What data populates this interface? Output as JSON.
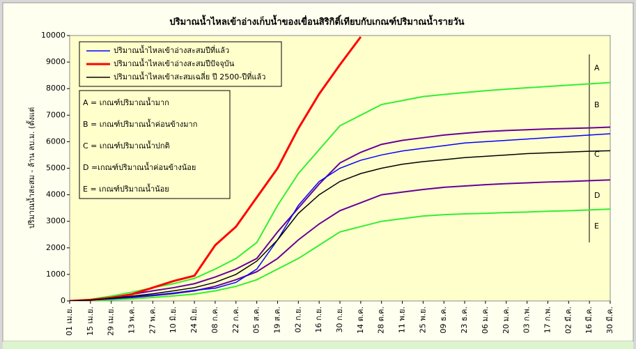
{
  "chart_data": {
    "type": "line",
    "title": "ปริมาณน้ำไหลเข้าอ่างเก็บน้ำของเขื่อนสิริกิติ์เทียบกับเกณฑ์ปริมาณน้ำรายวัน",
    "y_label": "ปริมาณน้ำสะสม - ล้าน ลบ.ม. (ตั้งแต่",
    "categories": [
      "01 เม.ย.",
      "15 เม.ย.",
      "29 เม.ย.",
      "13 พ.ค.",
      "27 พ.ค.",
      "10 มิ.ย.",
      "24 มิ.ย.",
      "08 ก.ค.",
      "22 ก.ค.",
      "05 ส.ค.",
      "19 ส.ค.",
      "02 ก.ย.",
      "16 ก.ย.",
      "30 ก.ย.",
      "14 ต.ค.",
      "28 ต.ค.",
      "11 พ.ย.",
      "25 พ.ย.",
      "09 ธ.ค.",
      "23 ธ.ค.",
      "06 ม.ค.",
      "20 ม.ค.",
      "03 ก.พ.",
      "17 ก.พ.",
      "02 มี.ค.",
      "16 มี.ค.",
      "30 มี.ค."
    ],
    "ylim": [
      0,
      10000
    ],
    "yticks": [
      0,
      1000,
      2000,
      3000,
      4000,
      5000,
      6000,
      7000,
      8000,
      9000,
      10000
    ],
    "series": [
      {
        "color": "#33ee33",
        "width": 2,
        "values": [
          0,
          60,
          180,
          330,
          500,
          650,
          850,
          1200,
          1600,
          2200,
          3600,
          4800,
          5700,
          6600,
          7000,
          7400,
          7550,
          7700,
          7780,
          7850,
          7920,
          7980,
          8030,
          8080,
          8130,
          8180,
          8230
        ]
      },
      {
        "color": "#660099",
        "width": 2,
        "values": [
          0,
          40,
          130,
          250,
          380,
          500,
          650,
          900,
          1200,
          1600,
          2600,
          3500,
          4400,
          5200,
          5600,
          5900,
          6050,
          6150,
          6250,
          6320,
          6380,
          6420,
          6450,
          6480,
          6500,
          6520,
          6550
        ]
      },
      {
        "color": "#660099",
        "width": 2,
        "values": [
          0,
          20,
          70,
          130,
          200,
          280,
          380,
          550,
          800,
          1100,
          1600,
          2300,
          2900,
          3400,
          3700,
          4000,
          4100,
          4200,
          4280,
          4330,
          4380,
          4420,
          4450,
          4480,
          4500,
          4530,
          4560
        ]
      },
      {
        "color": "#33ee33",
        "width": 2,
        "values": [
          0,
          10,
          40,
          80,
          130,
          190,
          260,
          380,
          550,
          800,
          1200,
          1600,
          2100,
          2600,
          2800,
          3000,
          3100,
          3200,
          3250,
          3280,
          3300,
          3330,
          3350,
          3380,
          3400,
          3430,
          3460
        ]
      },
      {
        "name": "ปริมาณน้ำไหลเข้าอ่างสะสมปีที่แล้ว",
        "color": "#0000ff",
        "width": 1.5,
        "values": [
          0,
          30,
          80,
          150,
          220,
          300,
          400,
          480,
          700,
          1200,
          2300,
          3600,
          4500,
          5000,
          5300,
          5500,
          5650,
          5750,
          5850,
          5950,
          6000,
          6050,
          6100,
          6150,
          6200,
          6250,
          6300
        ]
      },
      {
        "name": "ปริมาณน้ำไหลเข้าอ่างสะสมปีปัจจุบัน",
        "color": "#ff0000",
        "width": 3,
        "values": [
          0,
          40,
          120,
          250,
          500,
          750,
          950,
          2100,
          2800,
          3900,
          5000,
          6500,
          7800,
          8900,
          9950,
          null,
          null,
          null,
          null,
          null,
          null,
          null,
          null,
          null,
          null,
          null,
          null
        ]
      },
      {
        "name": "ปริมาณน้ำไหลเข้าสะสมเฉลี่ย ปี 2500-ปีที่แล้ว",
        "color": "#000000",
        "width": 1.5,
        "values": [
          0,
          30,
          100,
          180,
          270,
          380,
          500,
          700,
          1000,
          1500,
          2300,
          3300,
          4000,
          4500,
          4800,
          5000,
          5150,
          5250,
          5320,
          5400,
          5450,
          5500,
          5550,
          5580,
          5610,
          5640,
          5660
        ]
      }
    ],
    "annotations": [
      "A = เกณฑ์ปริมาณน้ำมาก",
      "B = เกณฑ์ปริมาณน้ำค่อนข้างมาก",
      "C = เกณฑ์ปริมาณน้ำปกติ",
      "D =เกณฑ์ปริมาณน้ำค่อนข้างน้อย",
      "E = เกณฑ์ปริมาณน้ำน้อย"
    ],
    "zone_labels": [
      "A",
      "B",
      "C",
      "D",
      "E"
    ]
  }
}
